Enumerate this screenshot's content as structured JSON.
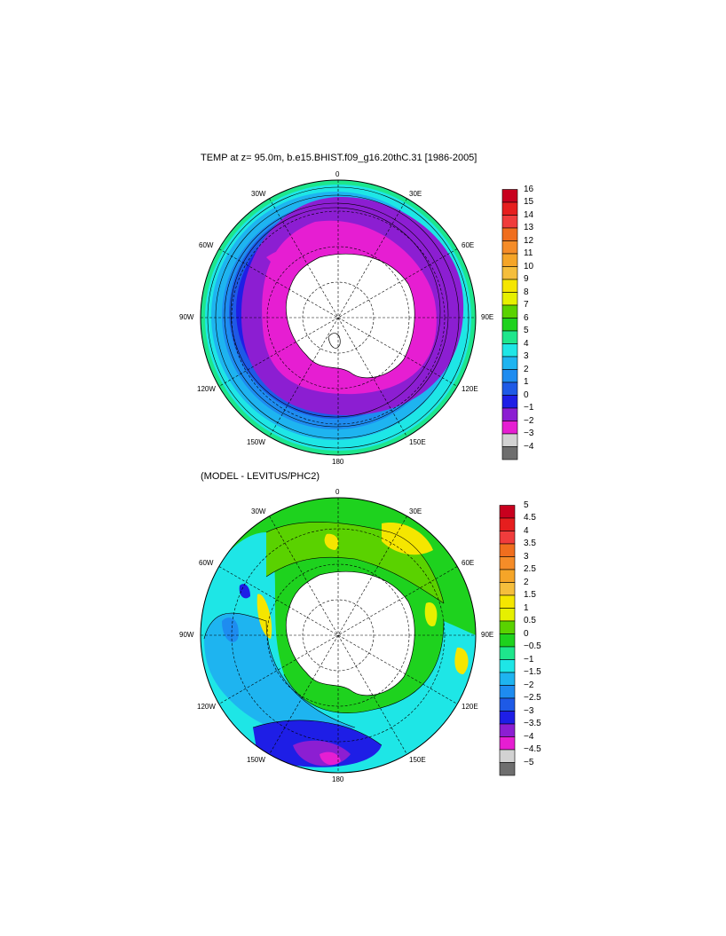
{
  "title_top": "TEMP at z=  95.0m, b.e15.BHIST.f09_g16.20thC.31 [1986-2005]",
  "title_bottom": "(MODEL - LEVITUS/PHC2)",
  "longitude_labels": [
    "0",
    "30E",
    "60E",
    "90E",
    "120E",
    "150E",
    "180",
    "150W",
    "120W",
    "90W",
    "60W",
    "30W"
  ],
  "colorbar_top": {
    "labels": [
      "16",
      "15",
      "14",
      "13",
      "12",
      "11",
      "10",
      "9",
      "8",
      "7",
      "6",
      "5",
      "4",
      "3",
      "2",
      "1",
      "0",
      "−1",
      "−2",
      "−3",
      "−4"
    ],
    "colors": [
      "#c8001e",
      "#e61e1e",
      "#f03c3c",
      "#f06e1e",
      "#f58c28",
      "#f5a528",
      "#f5be3c",
      "#f5e600",
      "#e6f000",
      "#5ad200",
      "#1ed21e",
      "#1ee68c",
      "#1ee6e6",
      "#1eb4f0",
      "#1e8cf0",
      "#1e5ae6",
      "#1e1ee6",
      "#8c1ed2",
      "#e61ed2",
      "#d2d2d2",
      "#6e6e6e"
    ]
  },
  "colorbar_bottom": {
    "labels": [
      "5",
      "4.5",
      "4",
      "3.5",
      "3",
      "2.5",
      "2",
      "1.5",
      "1",
      "0.5",
      "0",
      "−0.5",
      "−1",
      "−1.5",
      "−2",
      "−2.5",
      "−3",
      "−3.5",
      "−4",
      "−4.5",
      "−5"
    ],
    "colors": [
      "#c8001e",
      "#e61e1e",
      "#f03c3c",
      "#f06e1e",
      "#f58c28",
      "#f5a528",
      "#f5be3c",
      "#f5e600",
      "#e6f000",
      "#5ad200",
      "#1ed21e",
      "#1ee68c",
      "#1ee6e6",
      "#1eb4f0",
      "#1e8cf0",
      "#1e5ae6",
      "#1e1ee6",
      "#8c1ed2",
      "#e61ed2",
      "#d2d2d2",
      "#6e6e6e"
    ]
  }
}
